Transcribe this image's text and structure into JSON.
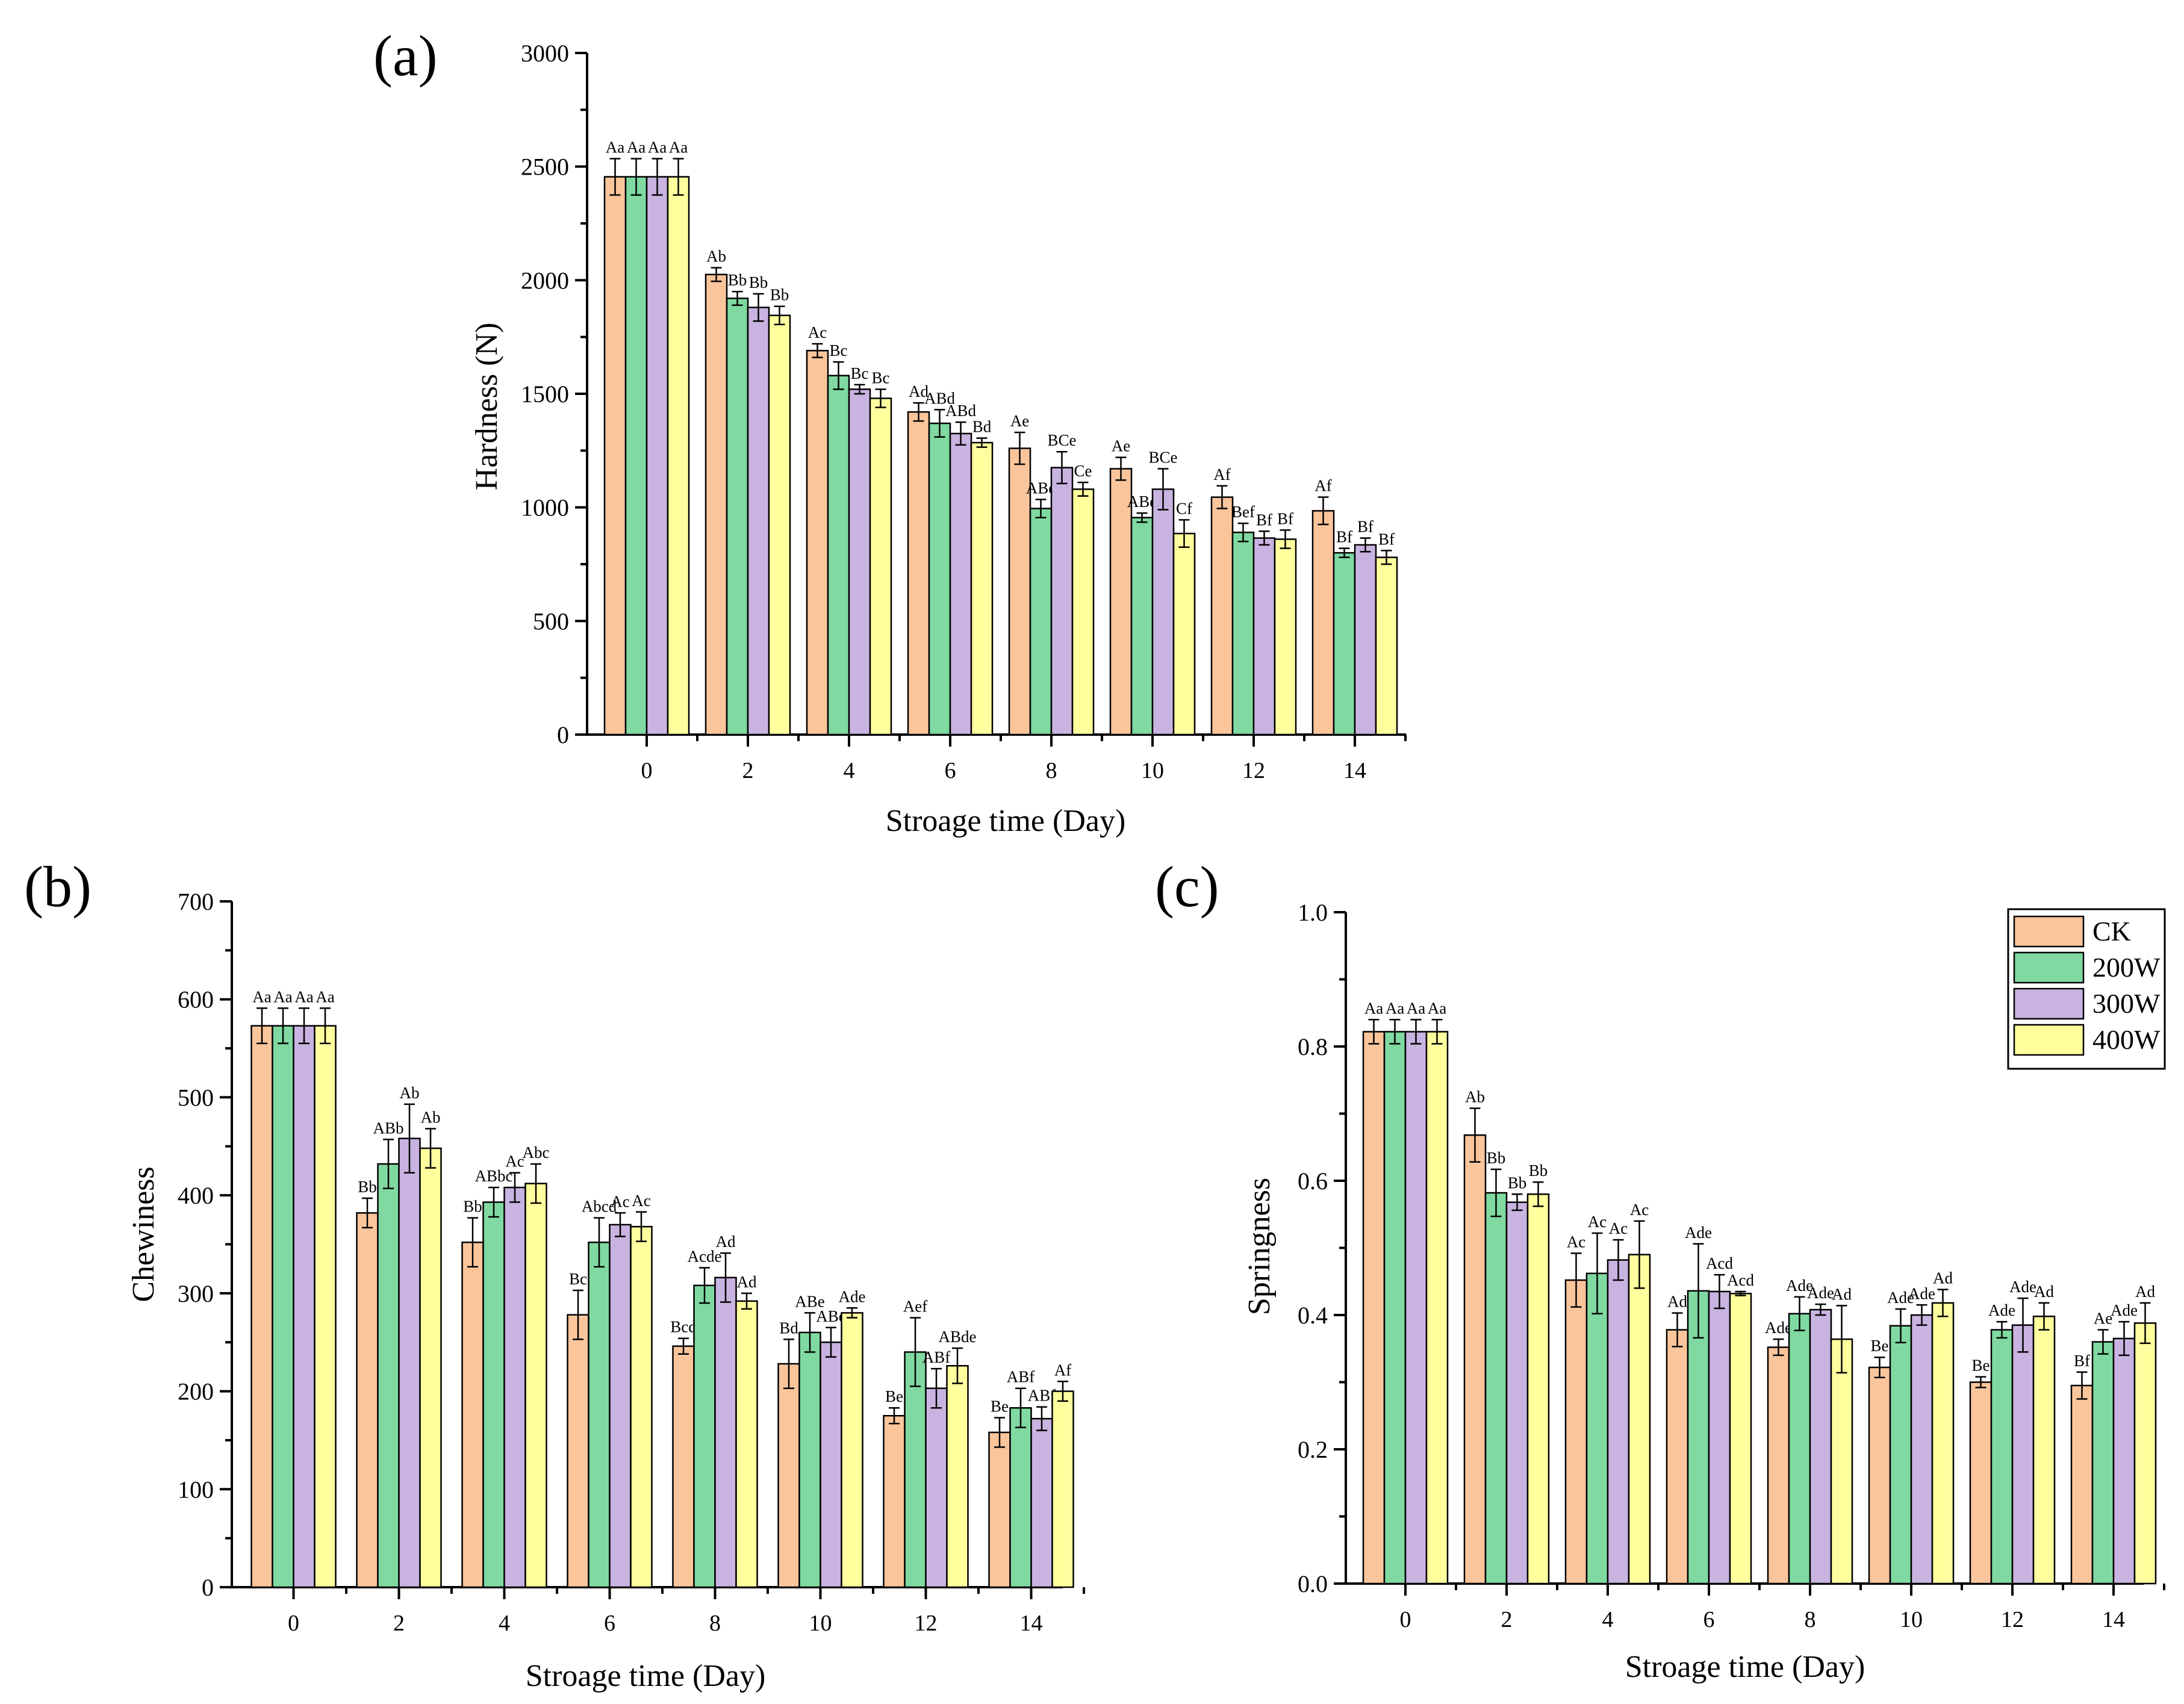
{
  "colors": {
    "CK": "#FBC59C",
    "200W": "#7FD9A1",
    "300W": "#C9B3E0",
    "400W": "#FFFF9E"
  },
  "legend": {
    "entries": [
      "CK",
      "200W",
      "300W",
      "400W"
    ],
    "placement": "top-right of panel (c)"
  },
  "chart_data": [
    {
      "panel_label": "(a)",
      "type": "bar",
      "categories": [
        "0",
        "2",
        "4",
        "6",
        "8",
        "10",
        "12",
        "14"
      ],
      "xlabel": "Stroage time (Day)",
      "ylabel": "Hardness (N)",
      "ylim": [
        0,
        3000
      ],
      "yticks": [
        "0",
        "500",
        "1000",
        "1500",
        "2000",
        "2500",
        "3000"
      ],
      "ytick_values": [
        0,
        500,
        1000,
        1500,
        2000,
        2500,
        3000
      ],
      "series": [
        {
          "name": "CK",
          "values": [
            2455,
            2025,
            1690,
            1420,
            1260,
            1170,
            1045,
            985
          ],
          "errors": [
            80,
            30,
            30,
            40,
            70,
            50,
            50,
            60
          ],
          "labels": [
            "Aa",
            "Ab",
            "Ac",
            "Ad",
            "Ae",
            "Ae",
            "Af",
            "Af"
          ]
        },
        {
          "name": "200W",
          "values": [
            2455,
            1920,
            1580,
            1370,
            995,
            955,
            890,
            800
          ],
          "errors": [
            80,
            30,
            60,
            60,
            40,
            20,
            40,
            20
          ],
          "labels": [
            "Aa",
            "Bb",
            "Bc",
            "ABd",
            "ABe",
            "ABe",
            "Bef",
            "Bf"
          ]
        },
        {
          "name": "300W",
          "values": [
            2455,
            1880,
            1520,
            1325,
            1175,
            1080,
            865,
            835
          ],
          "errors": [
            80,
            60,
            20,
            50,
            70,
            90,
            30,
            30
          ],
          "labels": [
            "Aa",
            "Bb",
            "Bc",
            "ABd",
            "BCe",
            "BCe",
            "Bf",
            "Bf"
          ]
        },
        {
          "name": "400W",
          "values": [
            2455,
            1845,
            1480,
            1285,
            1080,
            885,
            860,
            780
          ],
          "errors": [
            80,
            40,
            40,
            20,
            30,
            60,
            40,
            30
          ],
          "labels": [
            "Aa",
            "Bb",
            "Bc",
            "Bd",
            "Ce",
            "Cf",
            "Bf",
            "Bf"
          ]
        }
      ]
    },
    {
      "panel_label": "(b)",
      "type": "bar",
      "categories": [
        "0",
        "2",
        "4",
        "6",
        "8",
        "10",
        "12",
        "14"
      ],
      "xlabel": "Stroage time (Day)",
      "ylabel": "Chewiness",
      "ylim": [
        0,
        700
      ],
      "yticks": [
        "0",
        "100",
        "200",
        "300",
        "400",
        "500",
        "600",
        "700"
      ],
      "ytick_values": [
        0,
        100,
        200,
        300,
        400,
        500,
        600,
        700
      ],
      "series": [
        {
          "name": "CK",
          "values": [
            573,
            382,
            352,
            278,
            246,
            228,
            175,
            158
          ],
          "errors": [
            18,
            15,
            25,
            25,
            8,
            25,
            8,
            15
          ],
          "labels": [
            "Aa",
            "Bb",
            "Bb",
            "Bc",
            "Bcd",
            "Bd",
            "Be",
            "Be"
          ]
        },
        {
          "name": "200W",
          "values": [
            573,
            432,
            393,
            352,
            308,
            260,
            240,
            183
          ],
          "errors": [
            18,
            25,
            15,
            25,
            18,
            20,
            35,
            20
          ],
          "labels": [
            "Aa",
            "ABb",
            "ABbc",
            "Abcd",
            "Acde",
            "ABe",
            "Aef",
            "ABf"
          ]
        },
        {
          "name": "300W",
          "values": [
            573,
            458,
            408,
            370,
            316,
            250,
            203,
            172
          ],
          "errors": [
            18,
            35,
            15,
            12,
            25,
            15,
            20,
            12
          ],
          "labels": [
            "Aa",
            "Ab",
            "Ac",
            "Ac",
            "Ad",
            "ABe",
            "ABf",
            "ABf"
          ]
        },
        {
          "name": "400W",
          "values": [
            573,
            448,
            412,
            368,
            292,
            280,
            226,
            200
          ],
          "errors": [
            18,
            20,
            20,
            15,
            8,
            5,
            18,
            10
          ],
          "labels": [
            "Aa",
            "Ab",
            "Abc",
            "Ac",
            "Ad",
            "Ade",
            "ABde",
            "Af"
          ]
        }
      ]
    },
    {
      "panel_label": "(c)",
      "type": "bar",
      "categories": [
        "0",
        "2",
        "4",
        "6",
        "8",
        "10",
        "12",
        "14"
      ],
      "xlabel": "Stroage time (Day)",
      "ylabel": "Springness",
      "ylim": [
        0,
        1.0
      ],
      "yticks": [
        "0.0",
        "0.2",
        "0.4",
        "0.6",
        "0.8",
        "1.0"
      ],
      "ytick_values": [
        0,
        0.2,
        0.4,
        0.6,
        0.8,
        1.0
      ],
      "series": [
        {
          "name": "CK",
          "values": [
            0.822,
            0.668,
            0.452,
            0.378,
            0.352,
            0.322,
            0.3,
            0.295
          ],
          "errors": [
            0.018,
            0.04,
            0.04,
            0.025,
            0.012,
            0.015,
            0.008,
            0.02
          ],
          "labels": [
            "Aa",
            "Ab",
            "Ac",
            "Ad",
            "Ade",
            "Be",
            "Be",
            "Bf"
          ]
        },
        {
          "name": "200W",
          "values": [
            0.822,
            0.582,
            0.462,
            0.436,
            0.402,
            0.384,
            0.378,
            0.36
          ],
          "errors": [
            0.018,
            0.035,
            0.06,
            0.07,
            0.025,
            0.025,
            0.012,
            0.018
          ],
          "labels": [
            "Aa",
            "Bb",
            "Ac",
            "Ade",
            "Ade",
            "Ade",
            "Ade",
            "Ae"
          ]
        },
        {
          "name": "300W",
          "values": [
            0.822,
            0.568,
            0.482,
            0.435,
            0.408,
            0.4,
            0.385,
            0.365
          ],
          "errors": [
            0.018,
            0.012,
            0.03,
            0.025,
            0.008,
            0.015,
            0.04,
            0.025
          ],
          "labels": [
            "Aa",
            "Bb",
            "Ac",
            "Acd",
            "Ade",
            "Ade",
            "Ade",
            "Ade"
          ]
        },
        {
          "name": "400W",
          "values": [
            0.822,
            0.58,
            0.49,
            0.432,
            0.364,
            0.418,
            0.398,
            0.388
          ],
          "errors": [
            0.018,
            0.018,
            0.05,
            0.003,
            0.05,
            0.02,
            0.02,
            0.03
          ],
          "labels": [
            "Aa",
            "Bb",
            "Ac",
            "Acd",
            "Ad",
            "Ad",
            "Ad",
            "Ad"
          ]
        }
      ]
    }
  ]
}
